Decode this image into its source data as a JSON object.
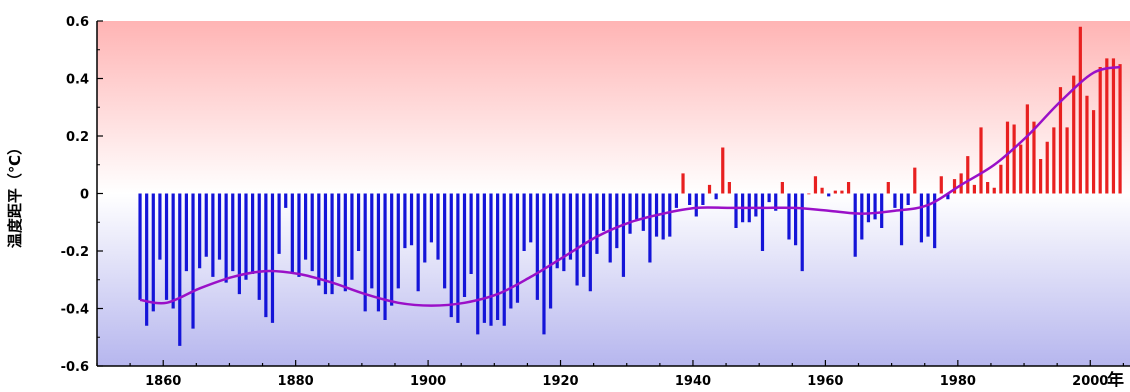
{
  "chart_data": {
    "type": "bar",
    "title": "",
    "xlabel": "年",
    "ylabel": "温度距平（℃）",
    "xlim": [
      1850,
      2006
    ],
    "ylim": [
      -0.6,
      0.6
    ],
    "x_ticks": [
      1860,
      1880,
      1900,
      1920,
      1940,
      1960,
      1980,
      2000
    ],
    "y_ticks": [
      -0.6,
      -0.4,
      -0.2,
      0,
      0.2,
      0.4,
      0.6
    ],
    "y_tick_labels": [
      "-0.6",
      "-0.4",
      "-0.2",
      "0",
      "0.2",
      "0.4",
      "0.6"
    ],
    "grid": false,
    "colors": {
      "positive_bar": "#e82020",
      "negative_bar": "#1414d8",
      "smoothed_line": "#9a10c8",
      "bg_top": "#ffb8b8",
      "bg_bottom": "#b8b8f0"
    },
    "series": [
      {
        "type": "bar",
        "x": [
          1856,
          1857,
          1858,
          1859,
          1860,
          1861,
          1862,
          1863,
          1864,
          1865,
          1866,
          1867,
          1868,
          1869,
          1870,
          1871,
          1872,
          1873,
          1874,
          1875,
          1876,
          1877,
          1878,
          1879,
          1880,
          1881,
          1882,
          1883,
          1884,
          1885,
          1886,
          1887,
          1888,
          1889,
          1890,
          1891,
          1892,
          1893,
          1894,
          1895,
          1896,
          1897,
          1898,
          1899,
          1900,
          1901,
          1902,
          1903,
          1904,
          1905,
          1906,
          1907,
          1908,
          1909,
          1910,
          1911,
          1912,
          1913,
          1914,
          1915,
          1916,
          1917,
          1918,
          1919,
          1920,
          1921,
          1922,
          1923,
          1924,
          1925,
          1926,
          1927,
          1928,
          1929,
          1930,
          1931,
          1932,
          1933,
          1934,
          1935,
          1936,
          1937,
          1938,
          1939,
          1940,
          1941,
          1942,
          1943,
          1944,
          1945,
          1946,
          1947,
          1948,
          1949,
          1950,
          1951,
          1952,
          1953,
          1954,
          1955,
          1956,
          1957,
          1958,
          1959,
          1960,
          1961,
          1962,
          1963,
          1964,
          1965,
          1966,
          1967,
          1968,
          1969,
          1970,
          1971,
          1972,
          1973,
          1974,
          1975,
          1976,
          1977,
          1978,
          1979,
          1980,
          1981,
          1982,
          1983,
          1984,
          1985,
          1986,
          1987,
          1988,
          1989,
          1990,
          1991,
          1992,
          1993,
          1994,
          1995,
          1996,
          1997,
          1998,
          1999,
          2000,
          2001,
          2002,
          2003,
          2004
        ],
        "values": [
          -0.37,
          -0.46,
          -0.41,
          -0.23,
          -0.37,
          -0.4,
          -0.53,
          -0.27,
          -0.47,
          -0.26,
          -0.22,
          -0.29,
          -0.23,
          -0.31,
          -0.27,
          -0.35,
          -0.3,
          -0.28,
          -0.37,
          -0.43,
          -0.45,
          -0.21,
          -0.05,
          -0.28,
          -0.29,
          -0.23,
          -0.27,
          -0.32,
          -0.35,
          -0.35,
          -0.29,
          -0.34,
          -0.3,
          -0.2,
          -0.41,
          -0.33,
          -0.41,
          -0.44,
          -0.39,
          -0.33,
          -0.19,
          -0.18,
          -0.34,
          -0.24,
          -0.17,
          -0.23,
          -0.33,
          -0.43,
          -0.45,
          -0.36,
          -0.28,
          -0.49,
          -0.45,
          -0.46,
          -0.44,
          -0.46,
          -0.4,
          -0.38,
          -0.2,
          -0.17,
          -0.37,
          -0.49,
          -0.4,
          -0.26,
          -0.27,
          -0.23,
          -0.32,
          -0.29,
          -0.34,
          -0.21,
          -0.13,
          -0.24,
          -0.19,
          -0.29,
          -0.14,
          -0.09,
          -0.13,
          -0.24,
          -0.15,
          -0.16,
          -0.15,
          -0.05,
          0.07,
          -0.04,
          -0.08,
          -0.04,
          0.03,
          -0.02,
          0.16,
          0.04,
          -0.12,
          -0.1,
          -0.1,
          -0.08,
          -0.2,
          -0.03,
          -0.06,
          0.04,
          -0.16,
          -0.18,
          -0.27,
          0.0,
          0.06,
          0.02,
          -0.01,
          0.01,
          0.01,
          0.04,
          -0.22,
          -0.16,
          -0.1,
          -0.09,
          -0.12,
          0.04,
          -0.05,
          -0.18,
          -0.04,
          0.09,
          -0.17,
          -0.15,
          -0.19,
          0.06,
          -0.02,
          0.05,
          0.07,
          0.13,
          0.03,
          0.23,
          0.04,
          0.02,
          0.1,
          0.25,
          0.24,
          0.17,
          0.31,
          0.25,
          0.12,
          0.18,
          0.23,
          0.37,
          0.23,
          0.41,
          0.58,
          0.34,
          0.29,
          0.44,
          0.47,
          0.47,
          0.45
        ]
      },
      {
        "type": "line",
        "x": [
          1856,
          1860,
          1865,
          1870,
          1875,
          1880,
          1885,
          1890,
          1895,
          1900,
          1905,
          1910,
          1915,
          1920,
          1925,
          1930,
          1935,
          1940,
          1945,
          1950,
          1955,
          1960,
          1965,
          1970,
          1975,
          1980,
          1985,
          1990,
          1995,
          2000,
          2004
        ],
        "values": [
          -0.37,
          -0.38,
          -0.33,
          -0.29,
          -0.27,
          -0.28,
          -0.31,
          -0.35,
          -0.38,
          -0.39,
          -0.38,
          -0.35,
          -0.29,
          -0.22,
          -0.15,
          -0.1,
          -0.07,
          -0.05,
          -0.05,
          -0.05,
          -0.05,
          -0.06,
          -0.07,
          -0.06,
          -0.04,
          0.03,
          0.1,
          0.2,
          0.32,
          0.42,
          0.44
        ]
      }
    ]
  }
}
